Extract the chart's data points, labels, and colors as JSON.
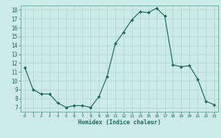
{
  "x": [
    0,
    1,
    2,
    3,
    4,
    5,
    6,
    7,
    8,
    9,
    10,
    11,
    12,
    13,
    14,
    15,
    16,
    17,
    18,
    19,
    20,
    21,
    22,
    23
  ],
  "y": [
    11.5,
    9.0,
    8.5,
    8.5,
    7.5,
    7.0,
    7.2,
    7.2,
    7.0,
    8.2,
    10.5,
    14.2,
    15.5,
    16.9,
    17.8,
    17.7,
    18.2,
    17.3,
    11.8,
    11.6,
    11.7,
    10.2,
    7.7,
    7.3
  ],
  "xlabel": "Humidex (Indice chaleur)",
  "xlim": [
    -0.5,
    23.5
  ],
  "ylim": [
    6.5,
    18.5
  ],
  "yticks": [
    7,
    8,
    9,
    10,
    11,
    12,
    13,
    14,
    15,
    16,
    17,
    18
  ],
  "xticks": [
    0,
    1,
    2,
    3,
    4,
    5,
    6,
    7,
    8,
    9,
    10,
    11,
    12,
    13,
    14,
    15,
    16,
    17,
    18,
    19,
    20,
    21,
    22,
    23
  ],
  "line_color": "#1a6b5e",
  "marker_color": "#1a6b5e",
  "bg_color": "#cceae7",
  "grid_color": "#add4d0",
  "axes_color": "#6aada8",
  "xlabel_color": "#1a6b5e",
  "tick_label_color": "#1a6b5e"
}
